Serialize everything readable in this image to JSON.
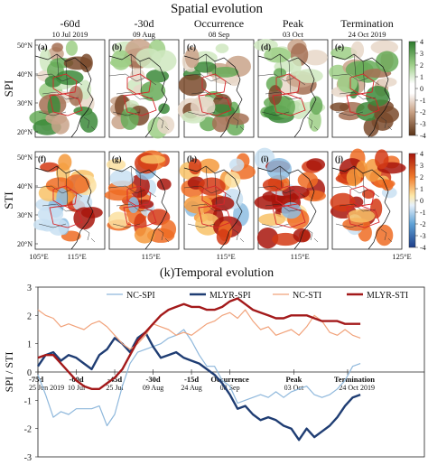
{
  "top_title": "Spatial evolution",
  "columns": [
    {
      "label": "-60d",
      "date": "10 Jul 2019"
    },
    {
      "label": "-30d",
      "date": "09 Aug"
    },
    {
      "label": "Occurrence",
      "date": "08 Sep"
    },
    {
      "label": "Peak",
      "date": "03 Oct"
    },
    {
      "label": "Termination",
      "date": "24 Oct 2019"
    }
  ],
  "rows": [
    {
      "label": "SPI",
      "panels": [
        "(a)",
        "(b)",
        "(c)",
        "(d)",
        "(e)"
      ]
    },
    {
      "label": "STI",
      "panels": [
        "(f)",
        "(g)",
        "(h)",
        "(i)",
        "(j)"
      ]
    }
  ],
  "map_lat_ticks": [
    "50°N",
    "40°N",
    "30°N",
    "20°N"
  ],
  "map_lon_ticks": [
    "105°E",
    "115°E",
    "115°E",
    "115°E",
    "115°E",
    "125°E"
  ],
  "colorbar_ticks": [
    "4",
    "3",
    "2",
    "1",
    "0",
    "-1",
    "-2",
    "-3",
    "-4"
  ],
  "colors": {
    "nc_spi": "#8fb8dc",
    "mlyr_spi": "#1f3d73",
    "nc_sti": "#f1a27a",
    "mlyr_sti": "#a3191a",
    "outline_red": "#d6262a"
  },
  "chart_data": {
    "type": "line",
    "title": "(k)Temporal evolution",
    "ylabel": "SPI / STI",
    "ylim": [
      -3,
      3
    ],
    "yticks": [
      3,
      2,
      1,
      0,
      -1,
      -2,
      -3
    ],
    "xlim": [
      0,
      151
    ],
    "x_ticks": [
      {
        "x": 0,
        "label": "-75d",
        "date": "25 Jun 2019"
      },
      {
        "x": 15,
        "label": "-60d",
        "date": "10 Jul"
      },
      {
        "x": 30,
        "label": "-45d",
        "date": "25 Jul"
      },
      {
        "x": 45,
        "label": "-30d",
        "date": "09 Aug"
      },
      {
        "x": 60,
        "label": "-15d",
        "date": "24 Aug"
      },
      {
        "x": 75,
        "label": "Occurrence",
        "date": "08 Sep"
      },
      {
        "x": 100,
        "label": "Peak",
        "date": "03 Oct"
      },
      {
        "x": 121,
        "label": "Termination",
        "date": "24 Oct 2019"
      }
    ],
    "legend_placement": "top",
    "series": [
      {
        "name": "NC-SPI",
        "key": "nc_spi",
        "x": [
          0,
          3,
          6,
          9,
          12,
          15,
          18,
          21,
          24,
          27,
          30,
          33,
          36,
          39,
          42,
          45,
          48,
          51,
          54,
          57,
          60,
          63,
          66,
          69,
          72,
          75,
          78,
          81,
          84,
          87,
          90,
          93,
          96,
          99,
          102,
          105,
          108,
          111,
          114,
          117,
          120,
          123,
          126
        ],
        "values": [
          -0.1,
          -0.8,
          -1.6,
          -1.4,
          -1.5,
          -1.3,
          -1.3,
          -1.3,
          -1.2,
          -1.9,
          -1.5,
          -0.5,
          0.3,
          0.7,
          0.8,
          0.9,
          1.0,
          1.2,
          1.3,
          1.5,
          1.1,
          0.6,
          0.2,
          0.2,
          -0.3,
          -0.5,
          -1.1,
          -1.0,
          -0.9,
          -0.8,
          -0.9,
          -0.7,
          -0.9,
          -0.7,
          -0.6,
          -0.5,
          -0.8,
          -0.9,
          -0.8,
          -0.6,
          -0.3,
          0.2,
          0.3
        ]
      },
      {
        "name": "MLYR-SPI",
        "key": "mlyr_spi",
        "x": [
          0,
          3,
          6,
          9,
          12,
          15,
          18,
          21,
          24,
          27,
          30,
          33,
          36,
          39,
          42,
          45,
          48,
          51,
          54,
          57,
          60,
          63,
          66,
          69,
          72,
          75,
          78,
          81,
          84,
          87,
          90,
          93,
          96,
          99,
          102,
          105,
          108,
          111,
          114,
          117,
          120,
          123,
          126
        ],
        "values": [
          0.2,
          0.6,
          0.7,
          0.4,
          0.6,
          0.5,
          0.3,
          0.1,
          0.6,
          0.8,
          1.2,
          1.0,
          0.7,
          1.2,
          1.4,
          0.9,
          0.5,
          0.6,
          0.7,
          0.5,
          0.4,
          0.3,
          0.1,
          -0.1,
          -0.4,
          -0.8,
          -1.3,
          -1.2,
          -1.5,
          -1.7,
          -1.6,
          -1.7,
          -1.9,
          -2.0,
          -2.4,
          -2.0,
          -2.3,
          -2.1,
          -1.9,
          -1.6,
          -1.2,
          -0.9,
          -0.8
        ]
      },
      {
        "name": "NC-STI",
        "key": "nc_sti",
        "x": [
          0,
          3,
          6,
          9,
          12,
          15,
          18,
          21,
          24,
          27,
          30,
          33,
          36,
          39,
          42,
          45,
          48,
          51,
          54,
          57,
          60,
          63,
          66,
          69,
          72,
          75,
          78,
          81,
          84,
          87,
          90,
          93,
          96,
          99,
          102,
          105,
          108,
          111,
          114,
          117,
          120,
          123,
          126
        ],
        "values": [
          2.2,
          2.0,
          1.9,
          1.6,
          1.7,
          1.6,
          1.5,
          1.7,
          1.8,
          1.6,
          1.3,
          1.0,
          0.8,
          1.0,
          1.3,
          1.7,
          1.6,
          1.5,
          1.3,
          1.4,
          1.3,
          1.5,
          1.7,
          1.8,
          2.0,
          2.1,
          1.9,
          2.2,
          1.8,
          1.5,
          1.6,
          1.3,
          1.4,
          1.5,
          1.3,
          1.6,
          2.0,
          1.8,
          1.4,
          1.3,
          1.5,
          1.3,
          1.2
        ]
      },
      {
        "name": "MLYR-STI",
        "key": "mlyr_sti",
        "x": [
          0,
          3,
          6,
          9,
          12,
          15,
          18,
          21,
          24,
          27,
          30,
          33,
          36,
          39,
          42,
          45,
          48,
          51,
          54,
          57,
          60,
          63,
          66,
          69,
          72,
          75,
          78,
          81,
          84,
          87,
          90,
          93,
          96,
          99,
          102,
          105,
          108,
          111,
          114,
          117,
          120,
          123,
          126
        ],
        "values": [
          0.5,
          0.6,
          0.6,
          0.3,
          0.0,
          -0.3,
          -0.5,
          -0.6,
          -0.6,
          -0.4,
          -0.2,
          0.1,
          0.6,
          1.1,
          1.4,
          1.7,
          2.0,
          2.2,
          2.3,
          2.4,
          2.3,
          2.3,
          2.2,
          2.2,
          2.3,
          2.5,
          2.6,
          2.4,
          2.2,
          2.1,
          2.0,
          1.9,
          1.9,
          2.0,
          2.0,
          2.0,
          1.9,
          1.8,
          1.8,
          1.8,
          1.7,
          1.7,
          1.7
        ]
      }
    ]
  }
}
